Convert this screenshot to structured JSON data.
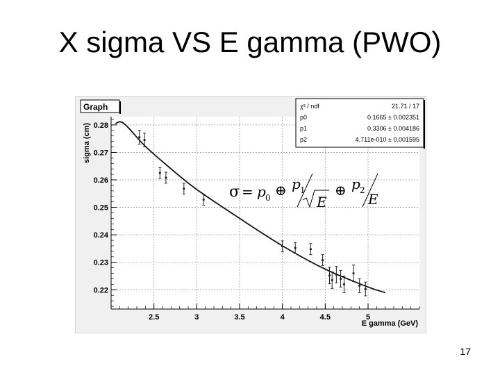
{
  "slide": {
    "title": "X sigma VS E gamma (PWO)",
    "page_number": "17"
  },
  "chart_data": {
    "type": "scatter",
    "title": "Graph",
    "xlabel": "E gamma (GeV)",
    "ylabel": "sigma (cm)",
    "xlim": [
      2.0,
      5.6
    ],
    "ylim": [
      0.213,
      0.283
    ],
    "x_ticks": [
      "2.5",
      "3",
      "3.5",
      "4",
      "4.5",
      "5"
    ],
    "y_ticks": [
      "0.22",
      "0.23",
      "0.24",
      "0.25",
      "0.26",
      "0.27",
      "0.28"
    ],
    "grid": true,
    "series": [
      {
        "type": "points_with_errors",
        "points": [
          {
            "x": 2.33,
            "y": 0.2755,
            "err": 0.0025
          },
          {
            "x": 2.39,
            "y": 0.2745,
            "err": 0.0025
          },
          {
            "x": 2.57,
            "y": 0.2625,
            "err": 0.002
          },
          {
            "x": 2.64,
            "y": 0.2608,
            "err": 0.002
          },
          {
            "x": 2.85,
            "y": 0.2568,
            "err": 0.002
          },
          {
            "x": 3.08,
            "y": 0.2528,
            "err": 0.002
          },
          {
            "x": 4.0,
            "y": 0.2358,
            "err": 0.002
          },
          {
            "x": 4.15,
            "y": 0.2352,
            "err": 0.002
          },
          {
            "x": 4.33,
            "y": 0.2348,
            "err": 0.002
          },
          {
            "x": 4.47,
            "y": 0.2308,
            "err": 0.002
          },
          {
            "x": 4.55,
            "y": 0.2252,
            "err": 0.003
          },
          {
            "x": 4.58,
            "y": 0.2235,
            "err": 0.003
          },
          {
            "x": 4.63,
            "y": 0.2255,
            "err": 0.003
          },
          {
            "x": 4.68,
            "y": 0.224,
            "err": 0.003
          },
          {
            "x": 4.72,
            "y": 0.222,
            "err": 0.003
          },
          {
            "x": 4.83,
            "y": 0.226,
            "err": 0.003
          },
          {
            "x": 4.9,
            "y": 0.2215,
            "err": 0.0025
          },
          {
            "x": 4.97,
            "y": 0.2203,
            "err": 0.0025
          }
        ]
      },
      {
        "type": "fit",
        "points": [
          {
            "x": 2.05,
            "y": 0.2805
          },
          {
            "x": 2.15,
            "y": 0.2805
          },
          {
            "x": 2.4,
            "y": 0.2722
          },
          {
            "x": 2.7,
            "y": 0.264
          },
          {
            "x": 3.0,
            "y": 0.2565
          },
          {
            "x": 3.5,
            "y": 0.246
          },
          {
            "x": 4.0,
            "y": 0.236
          },
          {
            "x": 4.5,
            "y": 0.2275
          },
          {
            "x": 5.0,
            "y": 0.221
          },
          {
            "x": 5.2,
            "y": 0.219
          }
        ]
      }
    ],
    "stats_box": {
      "rows": [
        {
          "label": "χ² / ndf",
          "value": "21.71 / 17"
        },
        {
          "label": "p0",
          "value": "0.1665 ± 0.002351"
        },
        {
          "label": "p1",
          "value": "0.3306 ± 0.004186"
        },
        {
          "label": "p2",
          "value": "4.711e-010 ± 0.001595"
        }
      ]
    },
    "formula": {
      "sigma": "σ",
      "eq": "=",
      "p0": "p",
      "p0_sub": "0",
      "oplus": "⊕",
      "p1": "p",
      "p1_sub": "1",
      "sqrtE": "E",
      "p2": "p",
      "p2_sub": "2",
      "E": "E"
    },
    "colors": {
      "frame_bg": "#f0f0f0",
      "plot_bg": "#ffffff",
      "axis": "#000000",
      "grid": "#9a9a9a",
      "curve": "#111111",
      "points": "#222222"
    }
  }
}
